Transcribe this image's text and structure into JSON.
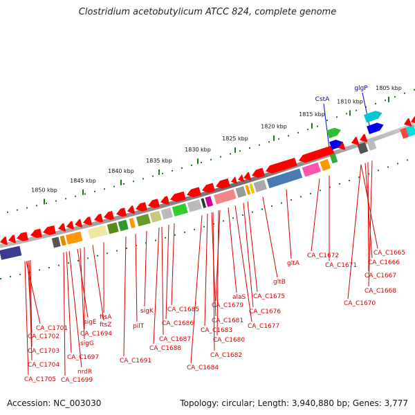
{
  "title": "Clostridium acetobutylicum ATCC 824, complete genome",
  "footer": {
    "accession": "Accession: NC_003030",
    "summary": "Topology: circular; Length: 3,940,880 bp; Genes: 3,777"
  },
  "colors": {
    "gene_label": "#d40000",
    "forward_gene_label": "#0000cc",
    "arrow_red": "#ff0000",
    "backbone": "#888888",
    "ruler_dots": "#1a7a1a"
  },
  "kbp_ticks": [
    "1805 kbp",
    "1810 kbp",
    "1815 kbp",
    "1820 kbp",
    "1825 kbp",
    "1830 kbp",
    "1835 kbp",
    "1840 kbp",
    "1845 kbp",
    "1850 kbp"
  ],
  "forward_genes": [
    "CstA",
    "glgP"
  ],
  "reverse_genes": [
    "CA_C1665",
    "CA_C1666",
    "CA_C1667",
    "CA_C1668",
    "CA_C1670",
    "CA_C1671",
    "CA_C1672",
    "gltA",
    "gltB",
    "CA_C1675",
    "CA_C1676",
    "CA_C1677",
    "alaS",
    "CA_C1679",
    "CA_C1680",
    "CA_C1681",
    "CA_C1682",
    "CA_C1683",
    "CA_C1684",
    "CA_C1685",
    "CA_C1686",
    "CA_C1687",
    "CA_C1688",
    "sigK",
    "CA_C1691",
    "pilT",
    "ftsA",
    "ftsZ",
    "CA_C1694",
    "sigE",
    "sigG",
    "CA_C1697",
    "nrdR",
    "CA_C1699",
    "CA_C1701",
    "CA_C1702",
    "CA_C1703",
    "CA_C1704",
    "CA_C1705"
  ]
}
